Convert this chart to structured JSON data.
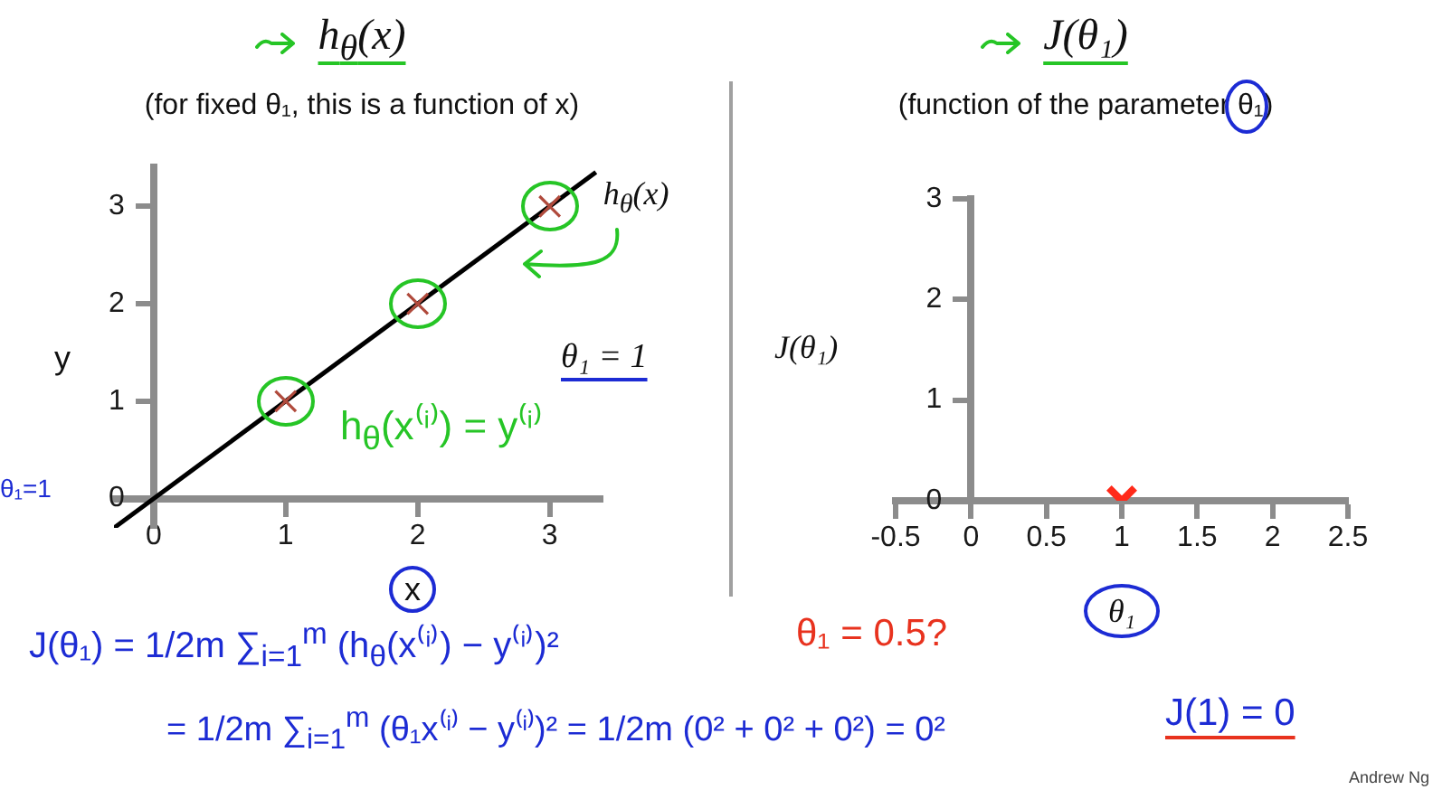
{
  "chart_data": [
    {
      "type": "line",
      "title": "h$_{θ}$(x)",
      "subtitle": "(for fixed θ₁, this is a function of x)",
      "xlabel": "x",
      "ylabel": "y",
      "xlim": [
        -0.3,
        3.4
      ],
      "ylim": [
        -0.3,
        3.4
      ],
      "xticks": [
        0,
        1,
        2,
        3
      ],
      "yticks": [
        0,
        1,
        2,
        3
      ],
      "series": [
        {
          "type": "scatter",
          "x": [
            1,
            2,
            3
          ],
          "values": [
            1,
            2,
            3
          ],
          "color": "#b04a3c",
          "marker": "cross"
        },
        {
          "name": "h$_{θ}$(x)",
          "x": [
            -0.3,
            3.35
          ],
          "values": [
            -0.3,
            3.35
          ],
          "color": "#000000",
          "marker": "none",
          "line_style": "solid"
        }
      ],
      "annotations": [
        "θ₁ = 1",
        "h$_{θ}$(x⁽ⁱ⁾) = y⁽ⁱ⁾",
        "θ₁=1",
        "J(θ₁) = 1/2m ∑$_{i=1}$$^{m}$ (h$_{θ}$(x⁽ⁱ⁾) − y⁽ⁱ⁾)²",
        "= 1/2m ∑$_{i=1}$$^{m}$ (θ₁x⁽ⁱ⁾ − y⁽ⁱ⁾)² = 1/2m (0² + 0² + 0²) = 0²"
      ]
    },
    {
      "type": "scatter",
      "title": "J(θ₁)",
      "subtitle": "(function of the parameter θ₁)",
      "xlabel": "θ₁",
      "ylabel": "J(θ₁)",
      "xlim": [
        -0.5,
        2.5
      ],
      "ylim": [
        0,
        3
      ],
      "xticks": [
        -0.5,
        0,
        0.5,
        1,
        1.5,
        2,
        2.5
      ],
      "yticks": [
        0,
        1,
        2,
        3
      ],
      "series": [
        {
          "x": [
            1
          ],
          "values": [
            0
          ],
          "color": "#ff2a1a",
          "marker": "cross"
        }
      ],
      "annotations": [
        "θ₁ = 0.5?",
        "J(1) = 0",
        "Andrew Ng"
      ]
    }
  ]
}
